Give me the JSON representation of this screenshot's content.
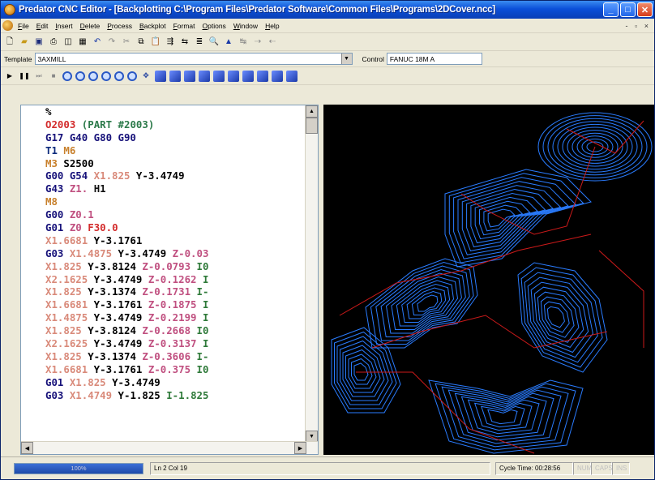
{
  "window": {
    "title": "Predator CNC Editor - [Backplotting C:\\Program Files\\Predator Software\\Common Files\\Programs\\2DCover.ncc]"
  },
  "menu": [
    "File",
    "Edit",
    "Insert",
    "Delete",
    "Process",
    "Backplot",
    "Format",
    "Options",
    "Window",
    "Help"
  ],
  "template": {
    "label": "Template",
    "value": "3AXMILL"
  },
  "control": {
    "label": "Control",
    "value": "FANUC 18M A"
  },
  "code": {
    "lines": [
      [
        {
          "t": "%",
          "c": "pct"
        }
      ],
      [
        {
          "t": "O2003",
          "c": "o"
        },
        {
          "t": " (PART #2003)",
          "c": "com"
        }
      ],
      [
        {
          "t": "G17 G40 G80 G90",
          "c": "g"
        }
      ],
      [
        {
          "t": "T1",
          "c": "t"
        },
        {
          "t": " M6",
          "c": "m"
        }
      ],
      [
        {
          "t": "M3",
          "c": "m"
        },
        {
          "t": " S2500",
          "c": "s"
        }
      ],
      [
        {
          "t": "G00 G54",
          "c": "g"
        },
        {
          "t": " X1.825",
          "c": "x"
        },
        {
          "t": " Y-3.4749",
          "c": "y"
        }
      ],
      [
        {
          "t": "G43",
          "c": "g"
        },
        {
          "t": " Z1.",
          "c": "z"
        },
        {
          "t": " H1",
          "c": "h"
        }
      ],
      [
        {
          "t": "M8",
          "c": "m"
        }
      ],
      [
        {
          "t": "G00",
          "c": "g"
        },
        {
          "t": " Z0.1",
          "c": "z"
        }
      ],
      [
        {
          "t": "G01",
          "c": "g"
        },
        {
          "t": " Z0",
          "c": "z"
        },
        {
          "t": " F30.0",
          "c": "f"
        }
      ],
      [
        {
          "t": "X1.6681",
          "c": "x"
        },
        {
          "t": " Y-3.1761",
          "c": "y"
        }
      ],
      [
        {
          "t": "G03",
          "c": "g"
        },
        {
          "t": " X1.4875",
          "c": "x"
        },
        {
          "t": " Y-3.4749",
          "c": "y"
        },
        {
          "t": " Z-0.03",
          "c": "z"
        }
      ],
      [
        {
          "t": "X1.825",
          "c": "x"
        },
        {
          "t": " Y-3.8124",
          "c": "y"
        },
        {
          "t": " Z-0.0793",
          "c": "z"
        },
        {
          "t": " I0",
          "c": "i"
        }
      ],
      [
        {
          "t": "X2.1625",
          "c": "x"
        },
        {
          "t": " Y-3.4749",
          "c": "y"
        },
        {
          "t": " Z-0.1262",
          "c": "z"
        },
        {
          "t": " I",
          "c": "i"
        }
      ],
      [
        {
          "t": "X1.825",
          "c": "x"
        },
        {
          "t": " Y-3.1374",
          "c": "y"
        },
        {
          "t": " Z-0.1731",
          "c": "z"
        },
        {
          "t": " I-",
          "c": "i"
        }
      ],
      [
        {
          "t": "X1.6681",
          "c": "x"
        },
        {
          "t": " Y-3.1761",
          "c": "y"
        },
        {
          "t": " Z-0.1875",
          "c": "z"
        },
        {
          "t": " I",
          "c": "i"
        }
      ],
      [
        {
          "t": "X1.4875",
          "c": "x"
        },
        {
          "t": " Y-3.4749",
          "c": "y"
        },
        {
          "t": " Z-0.2199",
          "c": "z"
        },
        {
          "t": " I",
          "c": "i"
        }
      ],
      [
        {
          "t": "X1.825",
          "c": "x"
        },
        {
          "t": " Y-3.8124",
          "c": "y"
        },
        {
          "t": " Z-0.2668",
          "c": "z"
        },
        {
          "t": " I0",
          "c": "i"
        }
      ],
      [
        {
          "t": "X2.1625",
          "c": "x"
        },
        {
          "t": " Y-3.4749",
          "c": "y"
        },
        {
          "t": " Z-0.3137",
          "c": "z"
        },
        {
          "t": " I",
          "c": "i"
        }
      ],
      [
        {
          "t": "X1.825",
          "c": "x"
        },
        {
          "t": " Y-3.1374",
          "c": "y"
        },
        {
          "t": " Z-0.3606",
          "c": "z"
        },
        {
          "t": " I-",
          "c": "i"
        }
      ],
      [
        {
          "t": "X1.6681",
          "c": "x"
        },
        {
          "t": " Y-3.1761",
          "c": "y"
        },
        {
          "t": " Z-0.375",
          "c": "z"
        },
        {
          "t": " I0",
          "c": "i"
        }
      ],
      [
        {
          "t": "G01",
          "c": "g"
        },
        {
          "t": " X1.825",
          "c": "x"
        },
        {
          "t": " Y-3.4749",
          "c": "y"
        }
      ],
      [
        {
          "t": "G03",
          "c": "g"
        },
        {
          "t": " X1.4749",
          "c": "x"
        },
        {
          "t": " Y-1.825",
          "c": "y"
        },
        {
          "t": " I-1.825",
          "c": "i"
        }
      ]
    ]
  },
  "status": {
    "progress_label": "100%",
    "progress_value": 100,
    "position": "Ln 2 Col 19",
    "cycle_time": "Cycle Time: 00:28:56",
    "indicators": [
      "NUM",
      "CAPS",
      "INS"
    ]
  },
  "colors": {
    "toolpath": "#2a7cff",
    "rapid": "#cc1a1a",
    "background": "#000000"
  }
}
